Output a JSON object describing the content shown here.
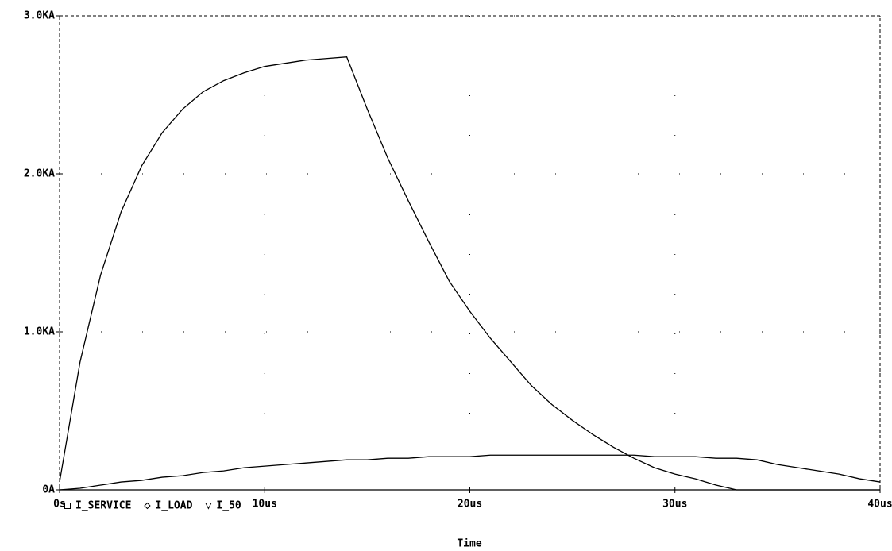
{
  "chart_data": {
    "type": "line",
    "x_label": "Time",
    "x": [
      0,
      1,
      2,
      3,
      4,
      5,
      6,
      7,
      8,
      9,
      10,
      11,
      12,
      13,
      14,
      15,
      16,
      17,
      18,
      19,
      20,
      21,
      22,
      23,
      24,
      25,
      26,
      27,
      28,
      29,
      30,
      31,
      32,
      33,
      34,
      35,
      36,
      37,
      38,
      39,
      40
    ],
    "series": [
      {
        "name": "I_SERVICE",
        "color": "#000000",
        "marker": "square",
        "values": [
          0.05,
          0.81,
          1.36,
          1.76,
          2.05,
          2.26,
          2.41,
          2.52,
          2.59,
          2.64,
          2.68,
          2.7,
          2.72,
          2.73,
          2.74,
          2.41,
          2.1,
          1.83,
          1.57,
          1.32,
          1.13,
          0.96,
          0.81,
          0.66,
          0.54,
          0.44,
          0.35,
          0.27,
          0.2,
          0.14,
          0.1,
          0.07,
          0.03,
          0,
          0,
          0,
          0,
          0,
          0,
          0,
          0
        ]
      },
      {
        "name": "I_LOAD",
        "color": "#000000",
        "marker": "diamond",
        "values": [
          0,
          0.01,
          0.03,
          0.05,
          0.06,
          0.08,
          0.09,
          0.11,
          0.12,
          0.14,
          0.15,
          0.16,
          0.17,
          0.18,
          0.19,
          0.19,
          0.2,
          0.2,
          0.21,
          0.21,
          0.21,
          0.22,
          0.22,
          0.22,
          0.22,
          0.22,
          0.22,
          0.22,
          0.22,
          0.21,
          0.21,
          0.21,
          0.2,
          0.2,
          0.19,
          0.16,
          0.14,
          0.12,
          0.1,
          0.07,
          0.05
        ]
      },
      {
        "name": "I_50",
        "color": "#000000",
        "marker": "triangle",
        "values": [
          0,
          0,
          0,
          0,
          0,
          0,
          0,
          0,
          0,
          0,
          0,
          0,
          0,
          0,
          0,
          0,
          0,
          0,
          0,
          0,
          0,
          0,
          0,
          0,
          0,
          0,
          0,
          0,
          0,
          0,
          0,
          0,
          0,
          0,
          0,
          0,
          0,
          0,
          0,
          0,
          0
        ]
      }
    ],
    "xlim": [
      0,
      40
    ],
    "xticks": [
      {
        "value": 0,
        "label": "0s"
      },
      {
        "value": 10,
        "label": "10us"
      },
      {
        "value": 20,
        "label": "20us"
      },
      {
        "value": 30,
        "label": "30us"
      },
      {
        "value": 40,
        "label": "40us"
      }
    ],
    "ylim": [
      0,
      3
    ],
    "yticks": [
      {
        "value": 0,
        "label": "0A"
      },
      {
        "value": 1,
        "label": "1.0KA"
      },
      {
        "value": 2,
        "label": "2.0KA"
      },
      {
        "value": 3,
        "label": "3.0KA"
      }
    ],
    "grid": true
  }
}
